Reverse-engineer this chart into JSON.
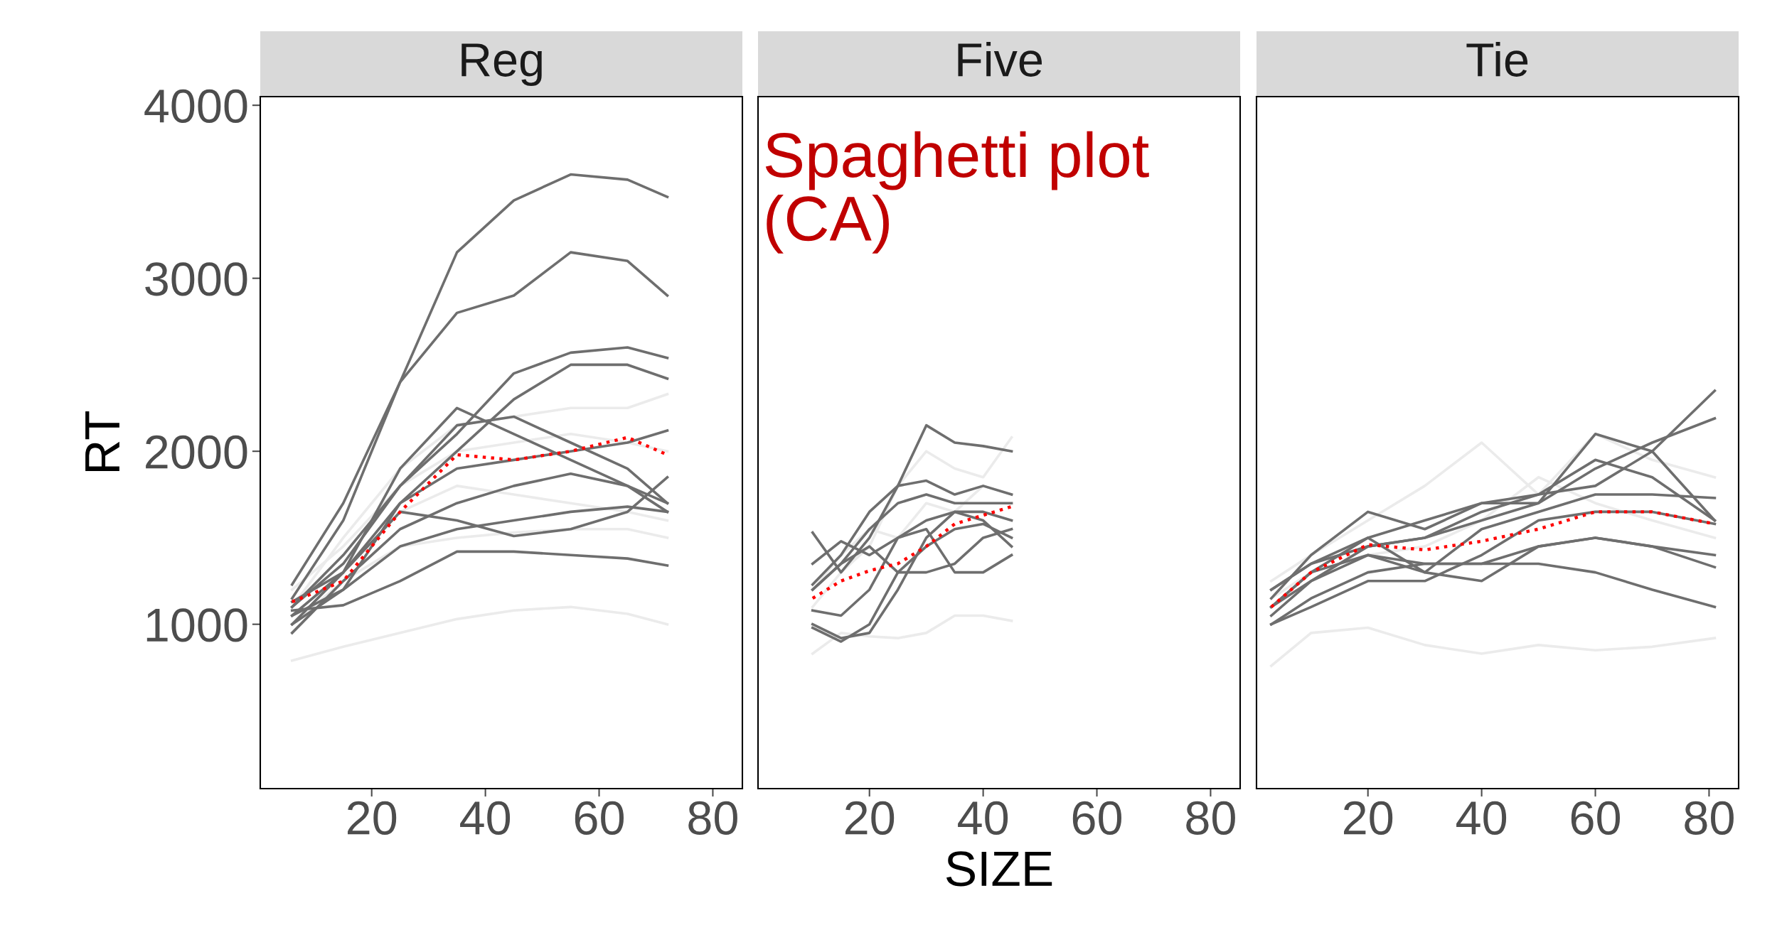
{
  "chart_data": [
    {
      "type": "line",
      "title": "Reg",
      "ylabel": "RT",
      "x": [
        6,
        15,
        25,
        35,
        45,
        55,
        65,
        72
      ],
      "xlim": [
        0.4,
        85.2
      ],
      "ylim": [
        50,
        4050
      ],
      "xticks": [
        20,
        40,
        60,
        80
      ],
      "yticks": [
        1000,
        2000,
        3000,
        4000
      ],
      "grid": false,
      "legend": false,
      "tick_labels": "xy",
      "series": [
        {
          "color": "#ebebeb",
          "line_style": "solid",
          "values": [
            790,
            870,
            950,
            1030,
            1080,
            1100,
            1060,
            1000
          ]
        },
        {
          "color": "#ebebeb",
          "line_style": "solid",
          "values": [
            1100,
            1500,
            1900,
            2150,
            2200,
            2250,
            2250,
            2330
          ]
        },
        {
          "color": "#ebebeb",
          "line_style": "solid",
          "values": [
            1000,
            1250,
            1450,
            1500,
            1530,
            1550,
            1550,
            1500
          ]
        },
        {
          "color": "#ebebeb",
          "line_style": "solid",
          "values": [
            1200,
            1450,
            1800,
            2000,
            2050,
            2100,
            2050,
            2000
          ]
        },
        {
          "color": "#ebebeb",
          "line_style": "solid",
          "values": [
            1050,
            1300,
            1650,
            1800,
            1750,
            1700,
            1650,
            1600
          ]
        },
        {
          "color": "#6e6e6e",
          "line_style": "solid",
          "values": [
            1230,
            1700,
            2400,
            3150,
            3450,
            3600,
            3570,
            3470
          ]
        },
        {
          "color": "#6e6e6e",
          "line_style": "solid",
          "values": [
            1150,
            1600,
            2400,
            2800,
            2900,
            3150,
            3100,
            2900
          ]
        },
        {
          "color": "#6e6e6e",
          "line_style": "solid",
          "values": [
            1100,
            1400,
            1800,
            2100,
            2450,
            2570,
            2600,
            2540
          ]
        },
        {
          "color": "#6e6e6e",
          "line_style": "solid",
          "values": [
            1050,
            1300,
            1700,
            2000,
            2300,
            2500,
            2500,
            2420
          ]
        },
        {
          "color": "#6e6e6e",
          "line_style": "solid",
          "values": [
            1000,
            1300,
            1900,
            2250,
            2100,
            1950,
            1800,
            1650
          ]
        },
        {
          "color": "#6e6e6e",
          "line_style": "solid",
          "values": [
            1100,
            1350,
            1800,
            2150,
            2200,
            2050,
            1900,
            1700
          ]
        },
        {
          "color": "#6e6e6e",
          "line_style": "solid",
          "values": [
            1050,
            1200,
            1700,
            1900,
            1950,
            2000,
            2050,
            2120
          ]
        },
        {
          "color": "#6e6e6e",
          "line_style": "solid",
          "values": [
            950,
            1250,
            1550,
            1700,
            1800,
            1870,
            1800,
            1700
          ]
        },
        {
          "color": "#6e6e6e",
          "line_style": "solid",
          "values": [
            1130,
            1300,
            1650,
            1600,
            1510,
            1550,
            1650,
            1850
          ]
        },
        {
          "color": "#6e6e6e",
          "line_style": "solid",
          "values": [
            1000,
            1200,
            1450,
            1550,
            1600,
            1650,
            1680,
            1650
          ]
        },
        {
          "color": "#6e6e6e",
          "line_style": "solid",
          "values": [
            1080,
            1110,
            1250,
            1420,
            1420,
            1400,
            1380,
            1340
          ]
        },
        {
          "color": "#ff0000",
          "line_style": "dotted",
          "values": [
            1130,
            1250,
            1650,
            1980,
            1950,
            2000,
            2080,
            1980
          ]
        }
      ]
    },
    {
      "type": "line",
      "title": "Five",
      "xlabel": "SIZE",
      "x": [
        10,
        15,
        20,
        25,
        30,
        35,
        40,
        45
      ],
      "xlim": [
        0.4,
        85.2
      ],
      "ylim": [
        50,
        4050
      ],
      "xticks": [
        20,
        40,
        60,
        80
      ],
      "yticks": [
        1000,
        2000,
        3000,
        4000
      ],
      "grid": false,
      "legend": false,
      "tick_labels": "x",
      "annotations": [
        "Spaghetti plot\n(CA)"
      ],
      "series": [
        {
          "color": "#ebebeb",
          "line_style": "solid",
          "values": [
            830,
            950,
            930,
            920,
            950,
            1050,
            1050,
            1020
          ]
        },
        {
          "color": "#ebebeb",
          "line_style": "solid",
          "values": [
            1100,
            1300,
            1450,
            1800,
            2000,
            1900,
            1850,
            2080
          ]
        },
        {
          "color": "#ebebeb",
          "line_style": "solid",
          "values": [
            1200,
            1400,
            1550,
            1500,
            1700,
            1650,
            1800,
            1750
          ]
        },
        {
          "color": "#6e6e6e",
          "line_style": "solid",
          "values": [
            1530,
            1300,
            1500,
            1800,
            2150,
            2050,
            2030,
            2000
          ]
        },
        {
          "color": "#6e6e6e",
          "line_style": "solid",
          "values": [
            1230,
            1400,
            1650,
            1800,
            1830,
            1750,
            1800,
            1750
          ]
        },
        {
          "color": "#6e6e6e",
          "line_style": "solid",
          "values": [
            1200,
            1350,
            1550,
            1700,
            1750,
            1700,
            1700,
            1700
          ]
        },
        {
          "color": "#6e6e6e",
          "line_style": "solid",
          "values": [
            1350,
            1480,
            1400,
            1500,
            1600,
            1650,
            1650,
            1600
          ]
        },
        {
          "color": "#6e6e6e",
          "line_style": "solid",
          "values": [
            1000,
            920,
            950,
            1200,
            1500,
            1650,
            1600,
            1450
          ]
        },
        {
          "color": "#6e6e6e",
          "line_style": "solid",
          "values": [
            980,
            900,
            1000,
            1300,
            1450,
            1550,
            1580,
            1500
          ]
        },
        {
          "color": "#6e6e6e",
          "line_style": "solid",
          "values": [
            1200,
            1350,
            1450,
            1300,
            1300,
            1350,
            1500,
            1550
          ]
        },
        {
          "color": "#6e6e6e",
          "line_style": "solid",
          "values": [
            1080,
            1050,
            1200,
            1500,
            1550,
            1300,
            1300,
            1400
          ]
        },
        {
          "color": "#ff0000",
          "line_style": "dotted",
          "values": [
            1150,
            1250,
            1310,
            1350,
            1450,
            1580,
            1630,
            1680
          ]
        }
      ]
    },
    {
      "type": "line",
      "title": "Tie",
      "x": [
        3,
        10,
        20,
        30,
        40,
        50,
        60,
        70,
        81
      ],
      "xlim": [
        0.4,
        85.2
      ],
      "ylim": [
        50,
        4050
      ],
      "xticks": [
        20,
        40,
        60,
        80
      ],
      "yticks": [
        1000,
        2000,
        3000,
        4000
      ],
      "grid": false,
      "legend": false,
      "tick_labels": "x",
      "series": [
        {
          "color": "#ebebeb",
          "line_style": "solid",
          "values": [
            760,
            950,
            980,
            880,
            830,
            880,
            850,
            870,
            920
          ]
        },
        {
          "color": "#ebebeb",
          "line_style": "solid",
          "values": [
            1250,
            1400,
            1600,
            1800,
            2050,
            1750,
            2100,
            1950,
            1850
          ]
        },
        {
          "color": "#ebebeb",
          "line_style": "solid",
          "values": [
            1150,
            1300,
            1400,
            1450,
            1600,
            1850,
            1700,
            1600,
            1500
          ]
        },
        {
          "color": "#6e6e6e",
          "line_style": "solid",
          "values": [
            1150,
            1400,
            1650,
            1550,
            1700,
            1750,
            1800,
            2000,
            2350
          ]
        },
        {
          "color": "#6e6e6e",
          "line_style": "solid",
          "values": [
            1100,
            1300,
            1500,
            1600,
            1700,
            1700,
            1900,
            2050,
            2190
          ]
        },
        {
          "color": "#6e6e6e",
          "line_style": "solid",
          "values": [
            1050,
            1250,
            1450,
            1500,
            1600,
            1700,
            2100,
            2000,
            1600
          ]
        },
        {
          "color": "#6e6e6e",
          "line_style": "solid",
          "values": [
            1200,
            1350,
            1450,
            1500,
            1650,
            1750,
            1950,
            1850,
            1600
          ]
        },
        {
          "color": "#6e6e6e",
          "line_style": "solid",
          "values": [
            1100,
            1250,
            1400,
            1300,
            1550,
            1650,
            1750,
            1750,
            1730
          ]
        },
        {
          "color": "#6e6e6e",
          "line_style": "solid",
          "values": [
            1000,
            1100,
            1250,
            1250,
            1400,
            1600,
            1650,
            1650,
            1580
          ]
        },
        {
          "color": "#6e6e6e",
          "line_style": "solid",
          "values": [
            1000,
            1150,
            1300,
            1350,
            1350,
            1450,
            1500,
            1450,
            1400
          ]
        },
        {
          "color": "#6e6e6e",
          "line_style": "solid",
          "values": [
            1100,
            1300,
            1400,
            1350,
            1350,
            1350,
            1300,
            1200,
            1100
          ]
        },
        {
          "color": "#6e6e6e",
          "line_style": "solid",
          "values": [
            1200,
            1350,
            1500,
            1300,
            1250,
            1450,
            1500,
            1450,
            1330
          ]
        },
        {
          "color": "#ff0000",
          "line_style": "dotted",
          "values": [
            1100,
            1300,
            1460,
            1430,
            1480,
            1550,
            1650,
            1650,
            1580
          ]
        }
      ]
    }
  ]
}
